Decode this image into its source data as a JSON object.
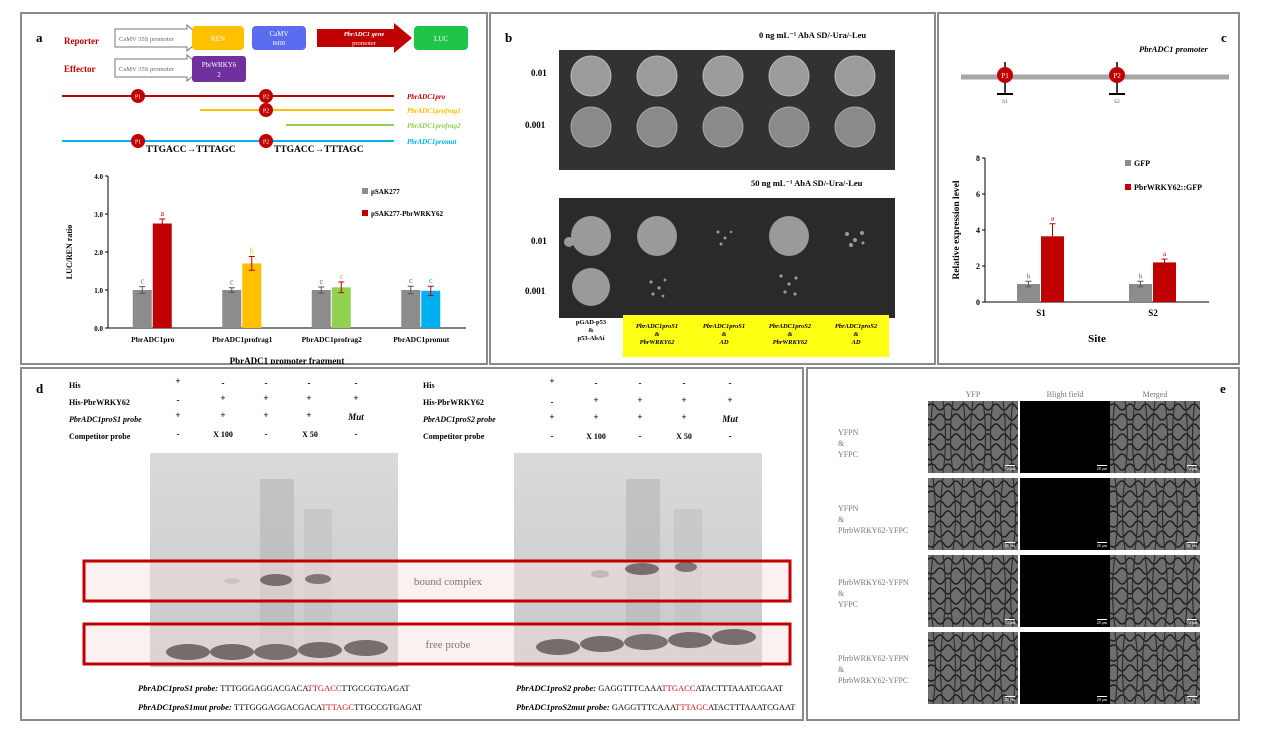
{
  "panel_a": {
    "label": "a",
    "reporter_label": "Reporter",
    "effector_label": "Effector",
    "box_promoter": "CaMV 35S promoter",
    "box_ren": "REN",
    "box_term_line1": "CaMV",
    "box_term_line2": "term",
    "box_gene_promoter_line1": "PbrADC1 gene",
    "box_gene_promoter_line2": "promoter",
    "box_luc": "LUC",
    "box_effector_gene_line1": "PbrWRKY6",
    "box_effector_gene_line2": "2",
    "p1": "P1",
    "p2": "P2",
    "frag_pro": "PbrADC1pro",
    "frag_1": "PbrADC1profrag1",
    "frag_2": "PbrADC1profrag2",
    "frag_mut": "PbrADC1promut",
    "mutation_text": "TTGACC→TTTAGC"
  },
  "chart_data": [
    {
      "type": "bar",
      "panel": "a",
      "categories": [
        "PbrADC1pro",
        "PbrADC1profrag1",
        "PbrADC1profrag2",
        "PbrADC1promut"
      ],
      "series": [
        {
          "name": "pSAK277",
          "values": [
            1.0,
            1.0,
            1.0,
            1.0
          ],
          "errors": [
            0.09,
            0.06,
            0.08,
            0.1
          ],
          "letters": [
            "c",
            "c",
            "c",
            "c"
          ],
          "color": "#8c8c8c"
        },
        {
          "name": "pSAK277-PbrWRKY62",
          "values": [
            2.75,
            1.7,
            1.07,
            0.98
          ],
          "errors": [
            0.12,
            0.18,
            0.14,
            0.12
          ],
          "letters": [
            "a",
            "b",
            "c",
            "c"
          ],
          "color": "#c00000",
          "bar_colors": [
            "#c00000",
            "#ffc000",
            "#92d050",
            "#00b0f0"
          ]
        }
      ],
      "ylabel": "LUC/REN ratio",
      "xlabel": "PbrADC1 promoter fragment",
      "ylim": [
        0,
        4
      ],
      "yticks": [
        "0.0",
        "1.0",
        "2.0",
        "3.0",
        "4.0"
      ]
    },
    {
      "type": "bar",
      "panel": "c",
      "categories": [
        "S1",
        "S2"
      ],
      "series": [
        {
          "name": "GFP",
          "values": [
            1.0,
            1.0
          ],
          "errors": [
            0.15,
            0.15
          ],
          "letters": [
            "b",
            "b"
          ],
          "color": "#8c8c8c"
        },
        {
          "name": "PbrWRKY62::GFP",
          "values": [
            3.65,
            2.2
          ],
          "errors": [
            0.7,
            0.18
          ],
          "letters": [
            "a",
            "a"
          ],
          "color": "#c00000"
        }
      ],
      "ylabel": "Relative expression level",
      "xlabel": "Site",
      "ylim": [
        0,
        8
      ],
      "yticks": [
        "0",
        "2",
        "4",
        "6",
        "8"
      ]
    }
  ],
  "panel_b": {
    "label": "b",
    "title_top": "0 ng mL⁻¹ AbA SD/-Ura/-Leu",
    "title_bottom": "50 ng mL⁻¹ AbA SD/-Ura/-Leu",
    "dil_1": "0.01",
    "dil_2": "0.001",
    "col_0_l1": "pGAD-p53",
    "col_0_l2": "&",
    "col_0_l3": "p53-AbAi",
    "col_1_l1": "PbrADC1proS1",
    "col_1_l2": "&",
    "col_1_l3": "PbrWRKY62",
    "col_2_l1": "PbrADC1proS1",
    "col_2_l2": "&",
    "col_2_l3": "AD",
    "col_3_l1": "PbrADC1proS2",
    "col_3_l2": "&",
    "col_3_l3": "PbrWRKY62",
    "col_4_l1": "PbrADC1proS2",
    "col_4_l2": "&",
    "col_4_l3": "AD"
  },
  "panel_c": {
    "label": "c",
    "promoter_title": "PbrADC1 promoter",
    "p1": "P1",
    "p2": "P2",
    "s1": "S1",
    "s2": "S2"
  },
  "panel_d": {
    "label": "d",
    "row_his": "His",
    "row_his_wrky": "His-PbrWRKY62",
    "row_probe_left": "PbrADC1proS1 probe",
    "row_probe_right": "PbrADC1proS2 probe",
    "row_competitor": "Competitor probe",
    "his_vals": [
      "+",
      "-",
      "-",
      "-",
      "-"
    ],
    "wrky_vals": [
      "-",
      "+",
      "+",
      "+",
      "+"
    ],
    "probe_vals": [
      "+",
      "+",
      "+",
      "+",
      "Mut"
    ],
    "comp_vals": [
      "-",
      "X 100",
      "-",
      "X 50",
      "-"
    ],
    "bound_complex": "bound complex",
    "free_probe": "free probe",
    "seq_s1_label": "PbrADC1proS1 probe: ",
    "seq_s1_pre": "TTTGGGAGGACGACA",
    "seq_s1_red": "TTGACC",
    "seq_s1_post": "TTGCCGTGAGAT",
    "seq_s1mut_label": "PbrADC1proS1mut probe: ",
    "seq_s1mut_pre": "TTTGGGAGGACGACA",
    "seq_s1mut_red": "TTTAGC",
    "seq_s1mut_post": "TTGCCGTGAGAT",
    "seq_s2_label": "PbrADC1proS2 probe: ",
    "seq_s2_pre": "GAGGTTTCAAA",
    "seq_s2_red": "TTGACC",
    "seq_s2_post": "ATACTTTAAATCGAAT",
    "seq_s2mut_label": "PbrADC1proS2mut probe: ",
    "seq_s2mut_pre": "GAGGTTTCAAA",
    "seq_s2mut_red": "TTTAGC",
    "seq_s2mut_post": "ATACTTTAAATCGAAT"
  },
  "panel_e": {
    "label": "e",
    "col_yfp": "YFP",
    "col_bright": "Blight field",
    "col_merged": "Merged",
    "row1": [
      "YFPN",
      "&",
      "YFPC"
    ],
    "row2": [
      "YFPN",
      "&",
      "PbrbWRKY62-YFPC"
    ],
    "row3": [
      "PbrbWRKY62-YFPN",
      "&",
      "YFPC"
    ],
    "row4": [
      "PbrbWRKY62-YFPN",
      "&",
      "PbrbWRKY62-YFPC"
    ],
    "scale": "20 μm"
  }
}
